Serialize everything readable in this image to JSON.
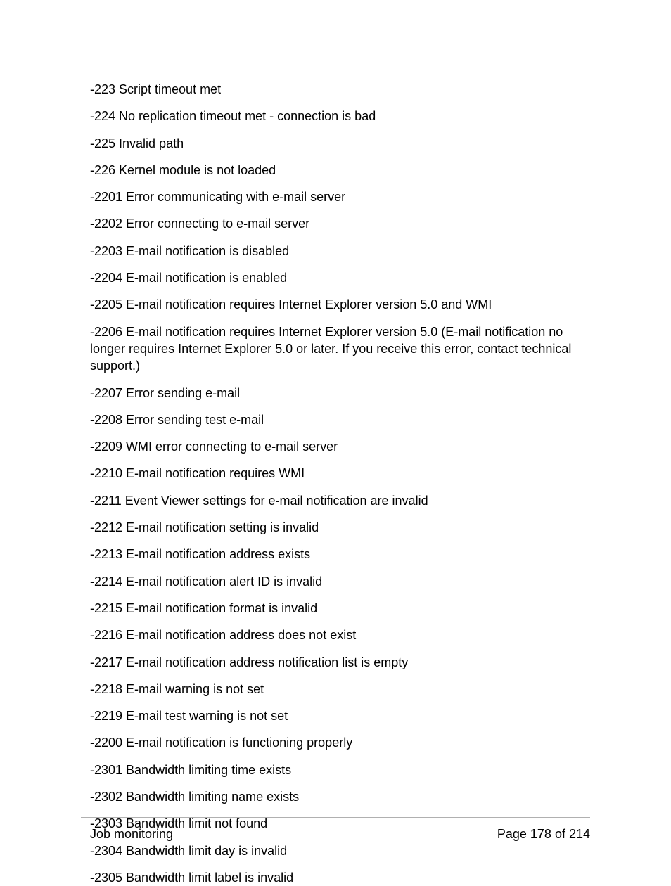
{
  "entries": [
    "-223 Script timeout met",
    "-224 No replication timeout met - connection is bad",
    "-225 Invalid path",
    "-226 Kernel module is not loaded",
    "-2201 Error communicating with e-mail server",
    "-2202 Error connecting to e-mail server",
    "-2203 E-mail notification is disabled",
    "-2204 E-mail notification is enabled",
    "-2205 E-mail notification requires Internet Explorer version 5.0 and WMI",
    "-2206 E-mail notification requires Internet Explorer version 5.0 (E-mail notification no longer requires Internet Explorer 5.0 or later. If you receive this error, contact technical support.)",
    "-2207 Error sending e-mail",
    "-2208 Error sending test e-mail",
    "-2209 WMI error connecting to e-mail server",
    "-2210 E-mail notification requires WMI",
    "-2211 Event Viewer settings for e-mail notification are invalid",
    "-2212 E-mail notification setting is invalid",
    "-2213 E-mail notification address exists",
    "-2214 E-mail notification alert ID is invalid",
    "-2215 E-mail notification format is invalid",
    "-2216 E-mail notification address does not exist",
    "-2217 E-mail notification address notification list is empty",
    "-2218 E-mail warning is not set",
    "-2219 E-mail test warning is not set",
    "-2200 E-mail notification is functioning properly",
    "-2301 Bandwidth limiting time exists",
    "-2302 Bandwidth limiting name exists",
    "-2303 Bandwidth limit not found",
    "-2304 Bandwidth limit day is invalid",
    "-2305 Bandwidth limit label is invalid"
  ],
  "footer": {
    "section": "Job monitoring",
    "page_label": "Page 178 of 214"
  },
  "style": {
    "font_family": "Arial, Helvetica, sans-serif",
    "font_size_pt": 13,
    "text_color": "#000000",
    "background_color": "#ffffff",
    "rule_color": "#b0b0b0"
  }
}
